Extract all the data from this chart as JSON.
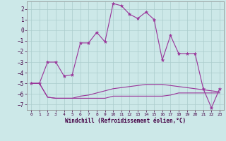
{
  "xlabel": "Windchill (Refroidissement éolien,°C)",
  "background_color": "#cce8e8",
  "grid_color": "#aacccc",
  "line_color": "#993399",
  "xlim": [
    -0.5,
    23.5
  ],
  "ylim": [
    -7.5,
    2.7
  ],
  "yticks": [
    -7,
    -6,
    -5,
    -4,
    -3,
    -2,
    -1,
    0,
    1,
    2
  ],
  "xticks": [
    0,
    1,
    2,
    3,
    4,
    5,
    6,
    7,
    8,
    9,
    10,
    11,
    12,
    13,
    14,
    15,
    16,
    17,
    18,
    19,
    20,
    21,
    22,
    23
  ],
  "line1_x": [
    0,
    1,
    2,
    3,
    4,
    5,
    6,
    7,
    8,
    9,
    10,
    11,
    12,
    13,
    14,
    15,
    16,
    17,
    18,
    19,
    20,
    21,
    22,
    23
  ],
  "line1_y": [
    -5.0,
    -5.0,
    -3.0,
    -3.0,
    -4.3,
    -4.2,
    -1.2,
    -1.2,
    -0.2,
    -1.1,
    2.5,
    2.3,
    1.5,
    1.1,
    1.7,
    1.0,
    -2.8,
    -0.5,
    -2.2,
    -2.2,
    -2.2,
    -5.5,
    -7.3,
    -5.5
  ],
  "line2_x": [
    0,
    1,
    2,
    3,
    4,
    5,
    6,
    7,
    8,
    9,
    10,
    11,
    12,
    13,
    14,
    15,
    16,
    17,
    18,
    19,
    20,
    21,
    22,
    23
  ],
  "line2_y": [
    -5.0,
    -5.0,
    -6.3,
    -6.4,
    -6.4,
    -6.4,
    -6.2,
    -6.1,
    -5.9,
    -5.7,
    -5.5,
    -5.4,
    -5.3,
    -5.2,
    -5.1,
    -5.1,
    -5.1,
    -5.2,
    -5.3,
    -5.4,
    -5.5,
    -5.6,
    -5.7,
    -5.8
  ],
  "line3_x": [
    0,
    1,
    2,
    3,
    4,
    5,
    6,
    7,
    8,
    9,
    10,
    11,
    12,
    13,
    14,
    15,
    16,
    17,
    18,
    19,
    20,
    21,
    22,
    23
  ],
  "line3_y": [
    -5.0,
    -5.0,
    -6.3,
    -6.4,
    -6.4,
    -6.4,
    -6.4,
    -6.4,
    -6.4,
    -6.4,
    -6.2,
    -6.2,
    -6.2,
    -6.2,
    -6.2,
    -6.2,
    -6.2,
    -6.1,
    -5.9,
    -5.9,
    -5.9,
    -5.9,
    -5.9,
    -5.9
  ]
}
